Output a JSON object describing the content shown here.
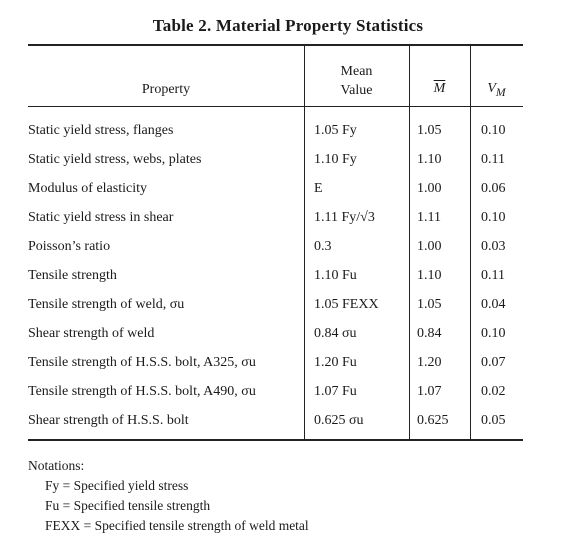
{
  "title": "Table 2.  Material Property Statistics",
  "headers": {
    "property": "Property",
    "mean_line1": "Mean",
    "mean_line2": "Value",
    "m_bar": "M",
    "vm": "V",
    "vm_sub": "M"
  },
  "rows": [
    {
      "property": "Static yield stress, flanges",
      "mean": "1.05 Fy",
      "m": "1.05",
      "v": "0.10"
    },
    {
      "property": "Static yield stress, webs, plates",
      "mean": "1.10 Fy",
      "m": "1.10",
      "v": "0.11"
    },
    {
      "property": "Modulus of elasticity",
      "mean": "E",
      "m": "1.00",
      "v": "0.06"
    },
    {
      "property": "Static yield stress in shear",
      "mean": "1.11 Fy/√3",
      "m": "1.11",
      "v": "0.10"
    },
    {
      "property": "Poisson’s ratio",
      "mean": "0.3",
      "m": "1.00",
      "v": "0.03"
    },
    {
      "property": "Tensile strength",
      "mean": "1.10 Fu",
      "m": "1.10",
      "v": "0.11"
    },
    {
      "property": "Tensile strength of weld, σu",
      "mean": "1.05 FEXX",
      "m": "1.05",
      "v": "0.04"
    },
    {
      "property": "Shear strength of weld",
      "mean": "0.84 σu",
      "m": "0.84",
      "v": "0.10"
    },
    {
      "property": "Tensile strength of H.S.S. bolt, A325, σu",
      "mean": "1.20 Fu",
      "m": "1.20",
      "v": "0.07"
    },
    {
      "property": "Tensile strength of H.S.S. bolt, A490, σu",
      "mean": "1.07 Fu",
      "m": "1.07",
      "v": "0.02"
    },
    {
      "property": "Shear strength of H.S.S. bolt",
      "mean": "0.625 σu",
      "m": "0.625",
      "v": "0.05"
    }
  ],
  "notes": {
    "heading": "Notations:",
    "items": [
      "Fy = Specified yield stress",
      "Fu = Specified tensile strength",
      "FEXX = Specified tensile strength of weld metal"
    ]
  }
}
